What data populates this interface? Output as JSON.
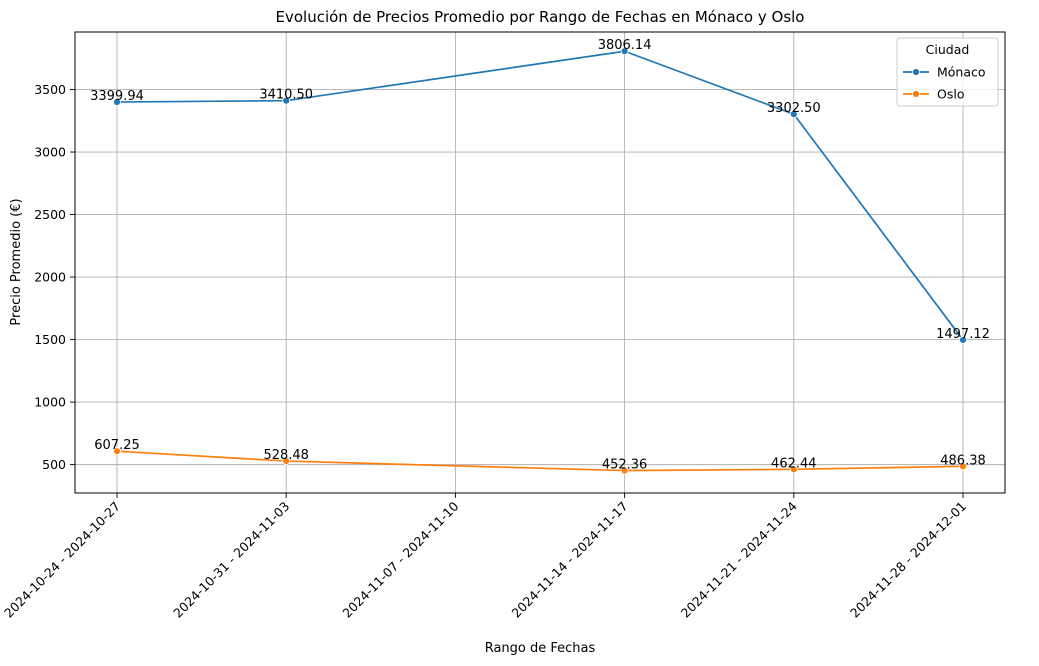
{
  "chart_data": {
    "type": "line",
    "title": "Evolución de Precios Promedio por Rango de Fechas en Mónaco y Oslo",
    "xlabel": "Rango de Fechas",
    "ylabel": "Precio Promedio (€)",
    "categories": [
      "2024-10-24 - 2024-10-27",
      "2024-10-31 - 2024-11-03",
      "2024-11-07 - 2024-11-10",
      "2024-11-14 - 2024-11-17",
      "2024-11-21 - 2024-11-24",
      "2024-11-28 - 2024-12-01"
    ],
    "ylim": [
      273,
      3960
    ],
    "yticks": [
      500,
      1000,
      1500,
      2000,
      2500,
      3000,
      3500
    ],
    "grid": true,
    "legend": {
      "title": "Ciudad",
      "position": "top-right"
    },
    "series": [
      {
        "name": "Mónaco",
        "color": "#1f77b4",
        "values": [
          3399.94,
          3410.5,
          null,
          3806.14,
          3302.5,
          1497.12
        ],
        "labels": [
          "3399.94",
          "3410.50",
          null,
          "3806.14",
          "3302.50",
          "1497.12"
        ]
      },
      {
        "name": "Oslo",
        "color": "#ff7f0e",
        "values": [
          607.25,
          528.48,
          null,
          452.36,
          462.44,
          486.38
        ],
        "labels": [
          "607.25",
          "528.48",
          null,
          "452.36",
          "462.44",
          "486.38"
        ]
      }
    ]
  }
}
